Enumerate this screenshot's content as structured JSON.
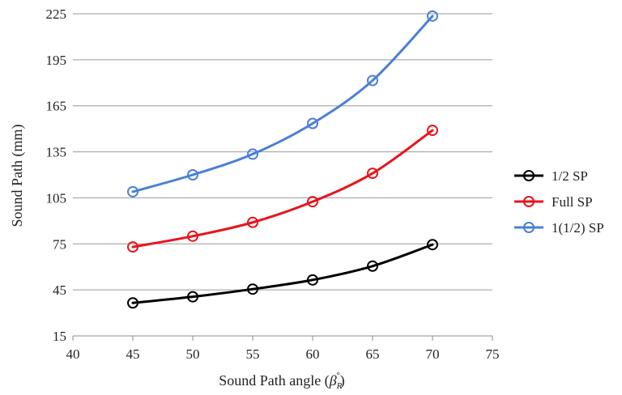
{
  "chart_data": {
    "type": "line",
    "title": "",
    "xlabel": "Sound Path angle (",
    "xlabel_symbol": "β",
    "xlabel_subscript": "R",
    "xlabel_superscript": "°",
    "xlabel_suffix": ")",
    "ylabel": "Sound Path (mm)",
    "xlim": [
      40,
      75
    ],
    "ylim": [
      15,
      225
    ],
    "x_ticks": [
      40,
      45,
      50,
      55,
      60,
      65,
      70,
      75
    ],
    "y_ticks": [
      15,
      45,
      75,
      105,
      135,
      165,
      195,
      225
    ],
    "grid": "horizontal",
    "legend_position": "right",
    "x": [
      45,
      50,
      55,
      60,
      65,
      70
    ],
    "series": [
      {
        "name": "1/2 SP",
        "color": "#000000",
        "values": [
          36.5,
          40.5,
          45.5,
          51.5,
          60.5,
          74.5
        ]
      },
      {
        "name": "Full SP",
        "color": "#e8141c",
        "values": [
          73,
          80,
          89,
          102.5,
          121,
          149
        ]
      },
      {
        "name": "1(1/2) SP",
        "color": "#4a7fd6",
        "values": [
          109,
          120,
          133.5,
          153.5,
          181.5,
          223.5
        ]
      }
    ]
  }
}
